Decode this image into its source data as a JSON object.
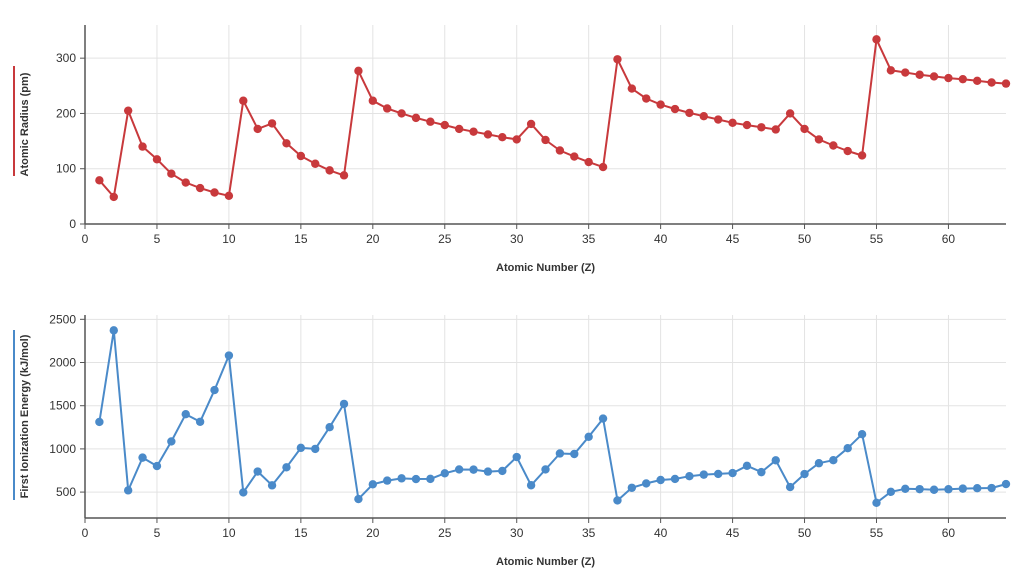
{
  "chart_data": [
    {
      "type": "line",
      "title": "",
      "xlabel": "Atomic Number (Z)",
      "ylabel": "Atomic Radius (pm)",
      "xlim": [
        0,
        64
      ],
      "ylim": [
        0,
        360
      ],
      "xticks": [
        0,
        5,
        10,
        15,
        20,
        25,
        30,
        35,
        40,
        45,
        50,
        55,
        60
      ],
      "yticks": [
        0,
        100,
        200,
        300
      ],
      "grid": true,
      "legend": "none",
      "color": "#c8393c",
      "x": [
        1,
        2,
        3,
        4,
        5,
        6,
        7,
        8,
        9,
        10,
        11,
        12,
        13,
        14,
        15,
        16,
        17,
        18,
        19,
        20,
        21,
        22,
        23,
        24,
        25,
        26,
        27,
        28,
        29,
        30,
        31,
        32,
        33,
        34,
        35,
        36,
        37,
        38,
        39,
        40,
        41,
        42,
        43,
        44,
        45,
        46,
        47,
        48,
        49,
        50,
        51,
        52,
        53,
        54,
        55,
        56,
        57,
        58,
        59,
        60,
        61,
        62,
        63,
        64
      ],
      "y": [
        79,
        49,
        205,
        140,
        117,
        91,
        75,
        65,
        57,
        51,
        223,
        172,
        182,
        146,
        123,
        109,
        97,
        88,
        277,
        223,
        209,
        200,
        192,
        185,
        179,
        172,
        167,
        162,
        157,
        153,
        181,
        152,
        133,
        122,
        112,
        103,
        298,
        245,
        227,
        216,
        208,
        201,
        195,
        189,
        183,
        179,
        175,
        171,
        200,
        172,
        153,
        142,
        132,
        124,
        334,
        278,
        274,
        270,
        267,
        264,
        262,
        259,
        256,
        254
      ]
    },
    {
      "type": "line",
      "title": "",
      "xlabel": "Atomic Number (Z)",
      "ylabel": "First Ionization Energy (kJ/mol)",
      "xlim": [
        0,
        64
      ],
      "ylim": [
        200,
        2550
      ],
      "xticks": [
        0,
        5,
        10,
        15,
        20,
        25,
        30,
        35,
        40,
        45,
        50,
        55,
        60
      ],
      "yticks": [
        500,
        1000,
        1500,
        2000,
        2500
      ],
      "grid": true,
      "legend": "none",
      "color": "#4a8ac9",
      "x": [
        1,
        2,
        3,
        4,
        5,
        6,
        7,
        8,
        9,
        10,
        11,
        12,
        13,
        14,
        15,
        16,
        17,
        18,
        19,
        20,
        21,
        22,
        23,
        24,
        25,
        26,
        27,
        28,
        29,
        30,
        31,
        32,
        33,
        34,
        35,
        36,
        37,
        38,
        39,
        40,
        41,
        42,
        43,
        44,
        45,
        46,
        47,
        48,
        49,
        50,
        51,
        52,
        53,
        54,
        55,
        56,
        57,
        58,
        59,
        60,
        61,
        62,
        63,
        64
      ],
      "y": [
        1312,
        2372,
        520,
        899,
        801,
        1086,
        1402,
        1314,
        1681,
        2081,
        496,
        738,
        578,
        787,
        1012,
        1000,
        1251,
        1521,
        419,
        590,
        633,
        659,
        651,
        653,
        717,
        762,
        760,
        737,
        745,
        906,
        579,
        762,
        947,
        941,
        1140,
        1351,
        403,
        550,
        600,
        640,
        652,
        684,
        702,
        710,
        720,
        804,
        731,
        868,
        558,
        709,
        834,
        869,
        1008,
        1170,
        376,
        503,
        538,
        534,
        527,
        533,
        540,
        545,
        547,
        593
      ]
    }
  ]
}
